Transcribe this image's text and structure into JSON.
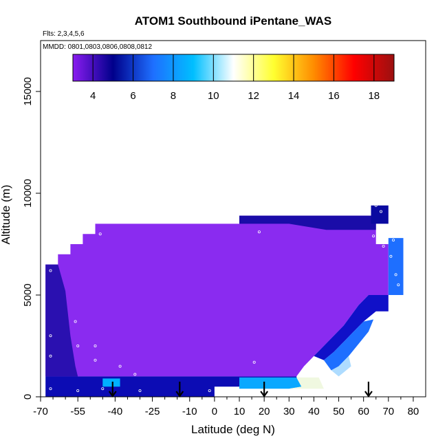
{
  "chart_data": {
    "type": "heatmap",
    "title": "ATOM1 Southbound iPentane_WAS",
    "flights_note": "Flts: 2,3,4,5,6",
    "dates_note": "MMDD: 0801,0803,0806,0808,0812",
    "xlabel": "Latitude (deg N)",
    "ylabel": "Altitude (m)",
    "xlim": [
      -70,
      85
    ],
    "ylim": [
      0,
      17500
    ],
    "x_ticks": [
      -70,
      -55,
      -40,
      -25,
      -10,
      0,
      10,
      20,
      30,
      40,
      50,
      60,
      70,
      80
    ],
    "x_tick_labels": [
      "-70",
      "-55",
      "-40",
      "-25",
      "-10",
      "0",
      "10",
      "20",
      "30",
      "40",
      "50",
      "60",
      "70",
      "80"
    ],
    "x_minor_ticks": [
      -65,
      -60,
      -50,
      -45,
      -35,
      -30,
      -20,
      -15,
      -5,
      5,
      15,
      25,
      35,
      45,
      55,
      65,
      75
    ],
    "y_ticks": [
      0,
      5000,
      10000,
      15000
    ],
    "y_tick_labels": [
      "0",
      "5000",
      "10000",
      "15000"
    ],
    "colorbar": {
      "range": [
        3,
        19
      ],
      "ticks": [
        4,
        6,
        8,
        10,
        12,
        14,
        16,
        18
      ],
      "tick_labels": [
        "4",
        "6",
        "8",
        "10",
        "12",
        "14",
        "16",
        "18"
      ],
      "colors": [
        "#8a1cf0",
        "#00008b",
        "#1e6fff",
        "#00bfff",
        "#ffffff",
        "#ffff30",
        "#ff8c00",
        "#ff0000",
        "#9b1010"
      ]
    },
    "arrows_latitude": [
      -41,
      -14,
      20,
      62
    ],
    "polygons": [
      {
        "name": "main-field",
        "color": "#8a2bf0",
        "points": [
          [
            -68,
            1000
          ],
          [
            -68,
            6500
          ],
          [
            -63,
            6500
          ],
          [
            -63,
            7000
          ],
          [
            -58,
            7000
          ],
          [
            -58,
            7500
          ],
          [
            -53,
            7500
          ],
          [
            -53,
            8000
          ],
          [
            -48,
            8000
          ],
          [
            -48,
            8500
          ],
          [
            10,
            8500
          ],
          [
            10,
            8900
          ],
          [
            65,
            8900
          ],
          [
            65,
            7500
          ],
          [
            70,
            7500
          ],
          [
            70,
            5000
          ],
          [
            62,
            5000
          ],
          [
            58,
            4500
          ],
          [
            55,
            4000
          ],
          [
            52,
            3500
          ],
          [
            48,
            3000
          ],
          [
            44,
            2500
          ],
          [
            40,
            2000
          ],
          [
            36,
            1500
          ],
          [
            33,
            1000
          ]
        ]
      },
      {
        "name": "upper-right-band",
        "color": "#1a0ca8",
        "points": [
          [
            10,
            8900
          ],
          [
            65,
            8900
          ],
          [
            65,
            8200
          ],
          [
            45,
            8200
          ],
          [
            30,
            8500
          ],
          [
            10,
            8500
          ]
        ]
      },
      {
        "name": "left-edge-band",
        "color": "#2a10b0",
        "points": [
          [
            -68,
            1000
          ],
          [
            -68,
            6500
          ],
          [
            -63,
            6500
          ],
          [
            -60,
            5200
          ],
          [
            -58,
            3000
          ],
          [
            -56,
            1500
          ],
          [
            -55,
            1000
          ]
        ]
      },
      {
        "name": "right-gradient-1",
        "color": "#1010c8",
        "points": [
          [
            40,
            2000
          ],
          [
            44,
            2500
          ],
          [
            48,
            3000
          ],
          [
            52,
            3500
          ],
          [
            55,
            4000
          ],
          [
            58,
            4500
          ],
          [
            62,
            5000
          ],
          [
            70,
            5000
          ],
          [
            70,
            4200
          ],
          [
            65,
            4200
          ],
          [
            60,
            3700
          ],
          [
            56,
            3200
          ],
          [
            52,
            2700
          ],
          [
            48,
            2200
          ],
          [
            44,
            1800
          ]
        ]
      },
      {
        "name": "right-gradient-2",
        "color": "#1e6fff",
        "points": [
          [
            44,
            1800
          ],
          [
            48,
            2200
          ],
          [
            52,
            2700
          ],
          [
            56,
            3200
          ],
          [
            60,
            3700
          ],
          [
            64,
            3800
          ],
          [
            62,
            3200
          ],
          [
            58,
            2600
          ],
          [
            54,
            2000
          ],
          [
            50,
            1500
          ],
          [
            47,
            1300
          ]
        ]
      },
      {
        "name": "right-gradient-3",
        "color": "#aedcff",
        "points": [
          [
            47,
            1300
          ],
          [
            50,
            1500
          ],
          [
            54,
            2000
          ],
          [
            55,
            1500
          ],
          [
            52,
            1200
          ],
          [
            50,
            1000
          ]
        ]
      },
      {
        "name": "upper-right-cell",
        "color": "#0a0aa0",
        "points": [
          [
            63,
            9400
          ],
          [
            70,
            9400
          ],
          [
            70,
            8500
          ],
          [
            63,
            8500
          ]
        ]
      },
      {
        "name": "right-edge-cells",
        "color": "#1e6fff",
        "points": [
          [
            70,
            7800
          ],
          [
            76,
            7800
          ],
          [
            76,
            5000
          ],
          [
            70,
            5000
          ]
        ]
      },
      {
        "name": "bottom-band",
        "color": "#0c0cb4",
        "points": [
          [
            -68,
            0
          ],
          [
            -68,
            1000
          ],
          [
            33,
            1000
          ],
          [
            34,
            500
          ],
          [
            0,
            500
          ],
          [
            0,
            0
          ]
        ]
      },
      {
        "name": "bottom-cyan-band",
        "color": "#00b0ff",
        "points": [
          [
            -45,
            500
          ],
          [
            -45,
            900
          ],
          [
            -38,
            900
          ],
          [
            -38,
            500
          ]
        ]
      },
      {
        "name": "mid-cyan-band",
        "color": "#0aa8ff",
        "points": [
          [
            10,
            400
          ],
          [
            10,
            950
          ],
          [
            33,
            950
          ],
          [
            35,
            500
          ],
          [
            30,
            400
          ]
        ]
      },
      {
        "name": "cream-tip",
        "color": "#f0f8e0",
        "points": [
          [
            30,
            400
          ],
          [
            35,
            500
          ],
          [
            33,
            950
          ],
          [
            42,
            950
          ],
          [
            44,
            400
          ]
        ]
      }
    ],
    "sample_points": [
      [
        -66,
        6200
      ],
      [
        -66,
        3000
      ],
      [
        -66,
        2000
      ],
      [
        -56,
        3700
      ],
      [
        -55,
        2500
      ],
      [
        -48,
        2500
      ],
      [
        -46,
        8000
      ],
      [
        -48,
        1800
      ],
      [
        -32,
        1100
      ],
      [
        -38,
        1500
      ],
      [
        -30,
        300
      ],
      [
        -45,
        400
      ],
      [
        -55,
        300
      ],
      [
        -66,
        400
      ],
      [
        18,
        8100
      ],
      [
        16,
        1700
      ],
      [
        -2,
        300
      ],
      [
        64,
        7900
      ],
      [
        68,
        7400
      ],
      [
        71,
        6900
      ],
      [
        73,
        6000
      ],
      [
        74,
        5500
      ],
      [
        72,
        7700
      ],
      [
        65,
        9400
      ],
      [
        67,
        9100
      ]
    ]
  }
}
